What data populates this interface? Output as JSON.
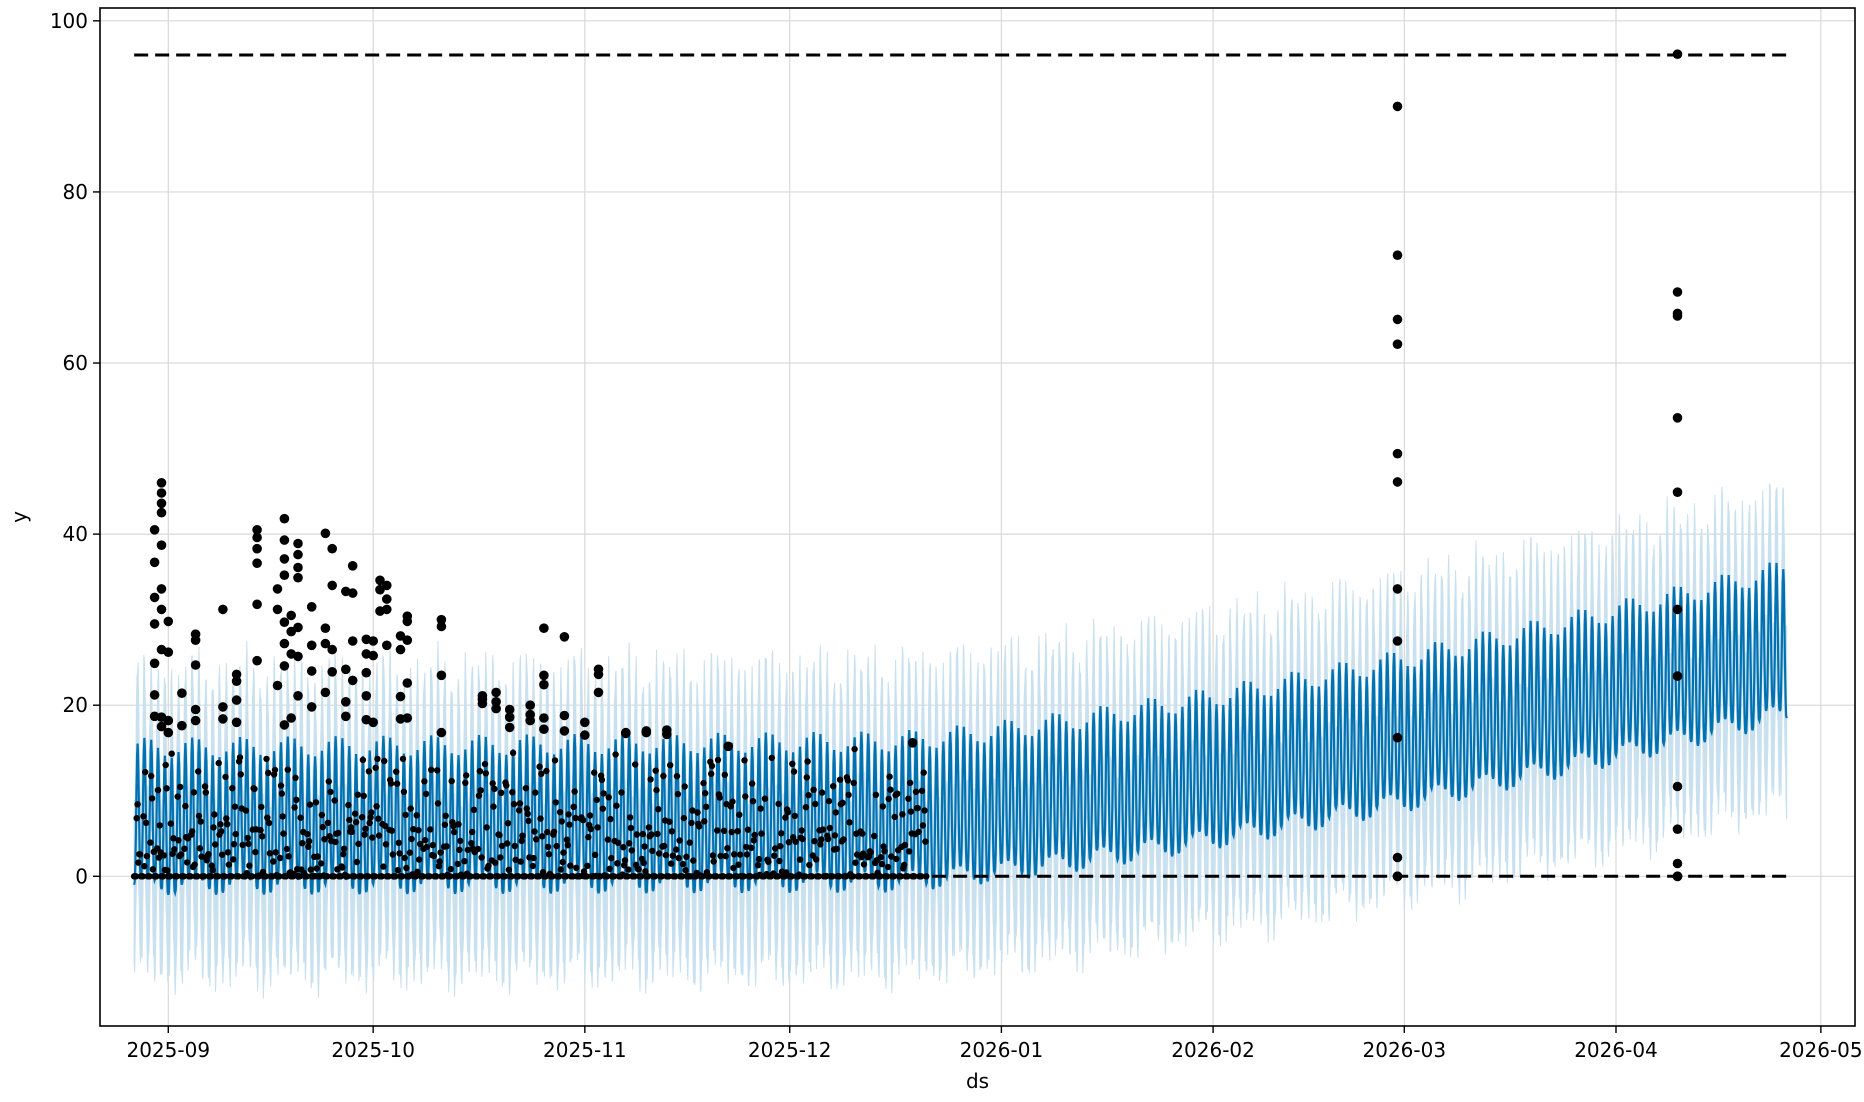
{
  "chart_data": {
    "type": "line",
    "title": "",
    "xlabel": "ds",
    "ylabel": "y",
    "x_range": [
      "2025-08-22",
      "2026-05-06"
    ],
    "ylim": [
      -17.5,
      101.5
    ],
    "x_ticks": [
      "2025-09",
      "2025-10",
      "2025-11",
      "2025-12",
      "2026-01",
      "2026-02",
      "2026-03",
      "2026-04",
      "2026-05"
    ],
    "y_ticks": [
      0,
      20,
      40,
      60,
      80,
      100
    ],
    "grid": true,
    "colors": {
      "forecast_line": "#0072b2",
      "uncertainty_band": "#c9e0ee",
      "observations": "#000000",
      "cap_floor": "#000000",
      "grid": "#d9d9d9"
    },
    "cap": {
      "value": 96,
      "x_start": "2025-08-27",
      "x_end": "2026-04-26",
      "style": "dashed"
    },
    "floor": {
      "value": 0,
      "x_start": "2025-08-27",
      "x_end": "2026-04-26",
      "style": "dashed"
    },
    "forecast": {
      "x_start": "2025-08-27",
      "x_end": "2026-04-26",
      "frequency": "hourly",
      "trend_start": 6.5,
      "trend_mid_2025-12-15": 6.8,
      "trend_end": 26.5,
      "daily_amplitude_start": 16,
      "daily_amplitude_end": 17,
      "band_upper_offset": 9,
      "band_lower_offset": -10
    },
    "observed_range": {
      "dense_start": "2025-08-27",
      "dense_end": "2025-12-21"
    },
    "observations": [
      {
        "x": "2025-08-31",
        "y": [
          46,
          44.8,
          43.6,
          42.5,
          38.7,
          33.6,
          31.2,
          26.5,
          18.6,
          17.5
        ]
      },
      {
        "x": "2025-08-30",
        "y": [
          40.5,
          36.7,
          32.6,
          29.5,
          24.9,
          21.2,
          18.7
        ]
      },
      {
        "x": "2025-09-01",
        "y": [
          29.8,
          26.2,
          18.2,
          16.8
        ]
      },
      {
        "x": "2025-09-03",
        "y": [
          21.4,
          17.6
        ]
      },
      {
        "x": "2025-09-05",
        "y": [
          28.3,
          27.6,
          24.7,
          19.5,
          18.2
        ]
      },
      {
        "x": "2025-09-09",
        "y": [
          31.2,
          19.8,
          18.4
        ]
      },
      {
        "x": "2025-09-11",
        "y": [
          23.6,
          22.8,
          20.6,
          18.0
        ]
      },
      {
        "x": "2025-09-14",
        "y": [
          40.5,
          39.6,
          38.3,
          36.6,
          31.8,
          25.2
        ]
      },
      {
        "x": "2025-09-17",
        "y": [
          33.6,
          31.2,
          22.3
        ]
      },
      {
        "x": "2025-09-18",
        "y": [
          41.8,
          39.3,
          37.1,
          35.2,
          29.7,
          27.2,
          24.6,
          17.7
        ]
      },
      {
        "x": "2025-09-19",
        "y": [
          30.5,
          28.6,
          26.0,
          18.5
        ]
      },
      {
        "x": "2025-09-20",
        "y": [
          38.9,
          37.6,
          36.1,
          34.9,
          29.1,
          25.7,
          21.1
        ]
      },
      {
        "x": "2025-09-22",
        "y": [
          31.5,
          27.0,
          24.0,
          19.8
        ]
      },
      {
        "x": "2025-09-24",
        "y": [
          40.1,
          29.0,
          27.2,
          21.5
        ]
      },
      {
        "x": "2025-09-25",
        "y": [
          38.3,
          34.0,
          26.5,
          23.9
        ]
      },
      {
        "x": "2025-09-27",
        "y": [
          33.3,
          24.2,
          20.4,
          18.7
        ]
      },
      {
        "x": "2025-09-28",
        "y": [
          36.3,
          33.1,
          27.5,
          22.9
        ]
      },
      {
        "x": "2025-09-30",
        "y": [
          27.7,
          26.0,
          23.8,
          21.1,
          18.3
        ]
      },
      {
        "x": "2025-10-01",
        "y": [
          27.5,
          25.8,
          18.0
        ]
      },
      {
        "x": "2025-10-02",
        "y": [
          34.6,
          33.5,
          31.0
        ]
      },
      {
        "x": "2025-10-03",
        "y": [
          34.0,
          32.4,
          31.2,
          27.0
        ]
      },
      {
        "x": "2025-10-05",
        "y": [
          28.1,
          26.5,
          21.0,
          18.4
        ]
      },
      {
        "x": "2025-10-06",
        "y": [
          30.4,
          29.8,
          27.6,
          22.6,
          18.5
        ]
      },
      {
        "x": "2025-10-11",
        "y": [
          30.0,
          29.2,
          23.5,
          16.8
        ]
      },
      {
        "x": "2025-10-17",
        "y": [
          21.1,
          20.7,
          20.2
        ]
      },
      {
        "x": "2025-10-19",
        "y": [
          21.5,
          20.4,
          19.6
        ]
      },
      {
        "x": "2025-10-21",
        "y": [
          19.5,
          18.6,
          17.4
        ]
      },
      {
        "x": "2025-10-24",
        "y": [
          20.0,
          18.9,
          18.2
        ]
      },
      {
        "x": "2025-10-26",
        "y": [
          29.0,
          23.5,
          22.4,
          18.5,
          17.2
        ]
      },
      {
        "x": "2025-10-29",
        "y": [
          28.0,
          18.8,
          17.0
        ]
      },
      {
        "x": "2025-11-01",
        "y": [
          18.0,
          16.5
        ]
      },
      {
        "x": "2025-11-03",
        "y": [
          24.2,
          23.6,
          21.5
        ]
      },
      {
        "x": "2025-11-07",
        "y": [
          16.8,
          16.7
        ]
      },
      {
        "x": "2025-11-10",
        "y": [
          17.0,
          16.8
        ]
      },
      {
        "x": "2025-11-13",
        "y": [
          17.1,
          16.6
        ]
      },
      {
        "x": "2025-11-22",
        "y": [
          15.2
        ]
      },
      {
        "x": "2025-12-19",
        "y": [
          15.6
        ]
      },
      {
        "x": "2026-02-28",
        "y": [
          90.0,
          72.6,
          65.1,
          62.2,
          49.4,
          46.1,
          33.6,
          27.5,
          16.2,
          2.2,
          0,
          0,
          0
        ]
      },
      {
        "x": "2026-04-10",
        "y": [
          96.1,
          68.3,
          65.8,
          65.5,
          53.6,
          44.9,
          31.2,
          23.4,
          10.5,
          5.5,
          1.5,
          0,
          0,
          0
        ]
      }
    ]
  }
}
